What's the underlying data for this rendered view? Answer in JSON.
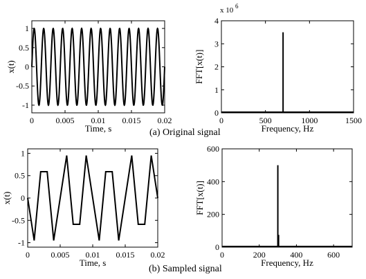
{
  "captions": {
    "top": "(a) Original signal",
    "bottom": "(b) Sampled signal"
  },
  "chart_data": [
    {
      "type": "line",
      "panel": "original-time",
      "title": "",
      "xlabel": "Time, s",
      "ylabel": "x(t)",
      "xlim": [
        0,
        0.02
      ],
      "ylim": [
        -1.2,
        1.2
      ],
      "xticks": [
        "0",
        "0.005",
        "0.01",
        "0.015",
        "0.02"
      ],
      "yticks": [
        "-1",
        "-0.5",
        "0",
        "0.5",
        "1"
      ],
      "signal": {
        "kind": "sine",
        "frequency_hz": 700,
        "amplitude": 1
      },
      "grid": false
    },
    {
      "type": "bar",
      "panel": "original-fft",
      "title": "",
      "xlabel": "Frequency, Hz",
      "ylabel": "FFT[x(t)]",
      "y_exponent_label": "x 10",
      "y_exponent": "6",
      "xlim": [
        0,
        1500
      ],
      "ylim": [
        0,
        4
      ],
      "xticks": [
        "0",
        "500",
        "1000",
        "1500"
      ],
      "yticks": [
        "0",
        "1",
        "2",
        "3",
        "4"
      ],
      "x": [
        700
      ],
      "values": [
        3.5
      ],
      "grid": false
    },
    {
      "type": "line",
      "panel": "sampled-time",
      "title": "",
      "xlabel": "Time, s",
      "ylabel": "x(t)",
      "xlim": [
        0,
        0.02
      ],
      "ylim": [
        -1.1,
        1.1
      ],
      "xticks": [
        "0",
        "0.005",
        "0.01",
        "0.015",
        "0.02"
      ],
      "yticks": [
        "-1",
        "-0.5",
        "0",
        "0.5",
        "1"
      ],
      "x": [
        0,
        0.001,
        0.002,
        0.003,
        0.004,
        0.005,
        0.006,
        0.007,
        0.008,
        0.009,
        0.01,
        0.011,
        0.012,
        0.013,
        0.014,
        0.015,
        0.016,
        0.017,
        0.018,
        0.019,
        0.02
      ],
      "y": [
        0,
        -0.951,
        0.588,
        0.588,
        -0.951,
        0,
        0.951,
        -0.588,
        -0.588,
        0.951,
        0,
        -0.951,
        0.588,
        0.588,
        -0.951,
        0,
        0.951,
        -0.588,
        -0.588,
        0.951,
        0
      ],
      "grid": false
    },
    {
      "type": "bar",
      "panel": "sampled-fft",
      "title": "",
      "xlabel": "Frequency, Hz",
      "ylabel": "FFT[x(t)]",
      "xlim": [
        0,
        700
      ],
      "ylim": [
        0,
        600
      ],
      "xticks": [
        "0",
        "200",
        "400",
        "600"
      ],
      "yticks": [
        "0",
        "200",
        "400",
        "600"
      ],
      "x": [
        300,
        304
      ],
      "values": [
        500,
        75
      ],
      "grid": false
    }
  ]
}
